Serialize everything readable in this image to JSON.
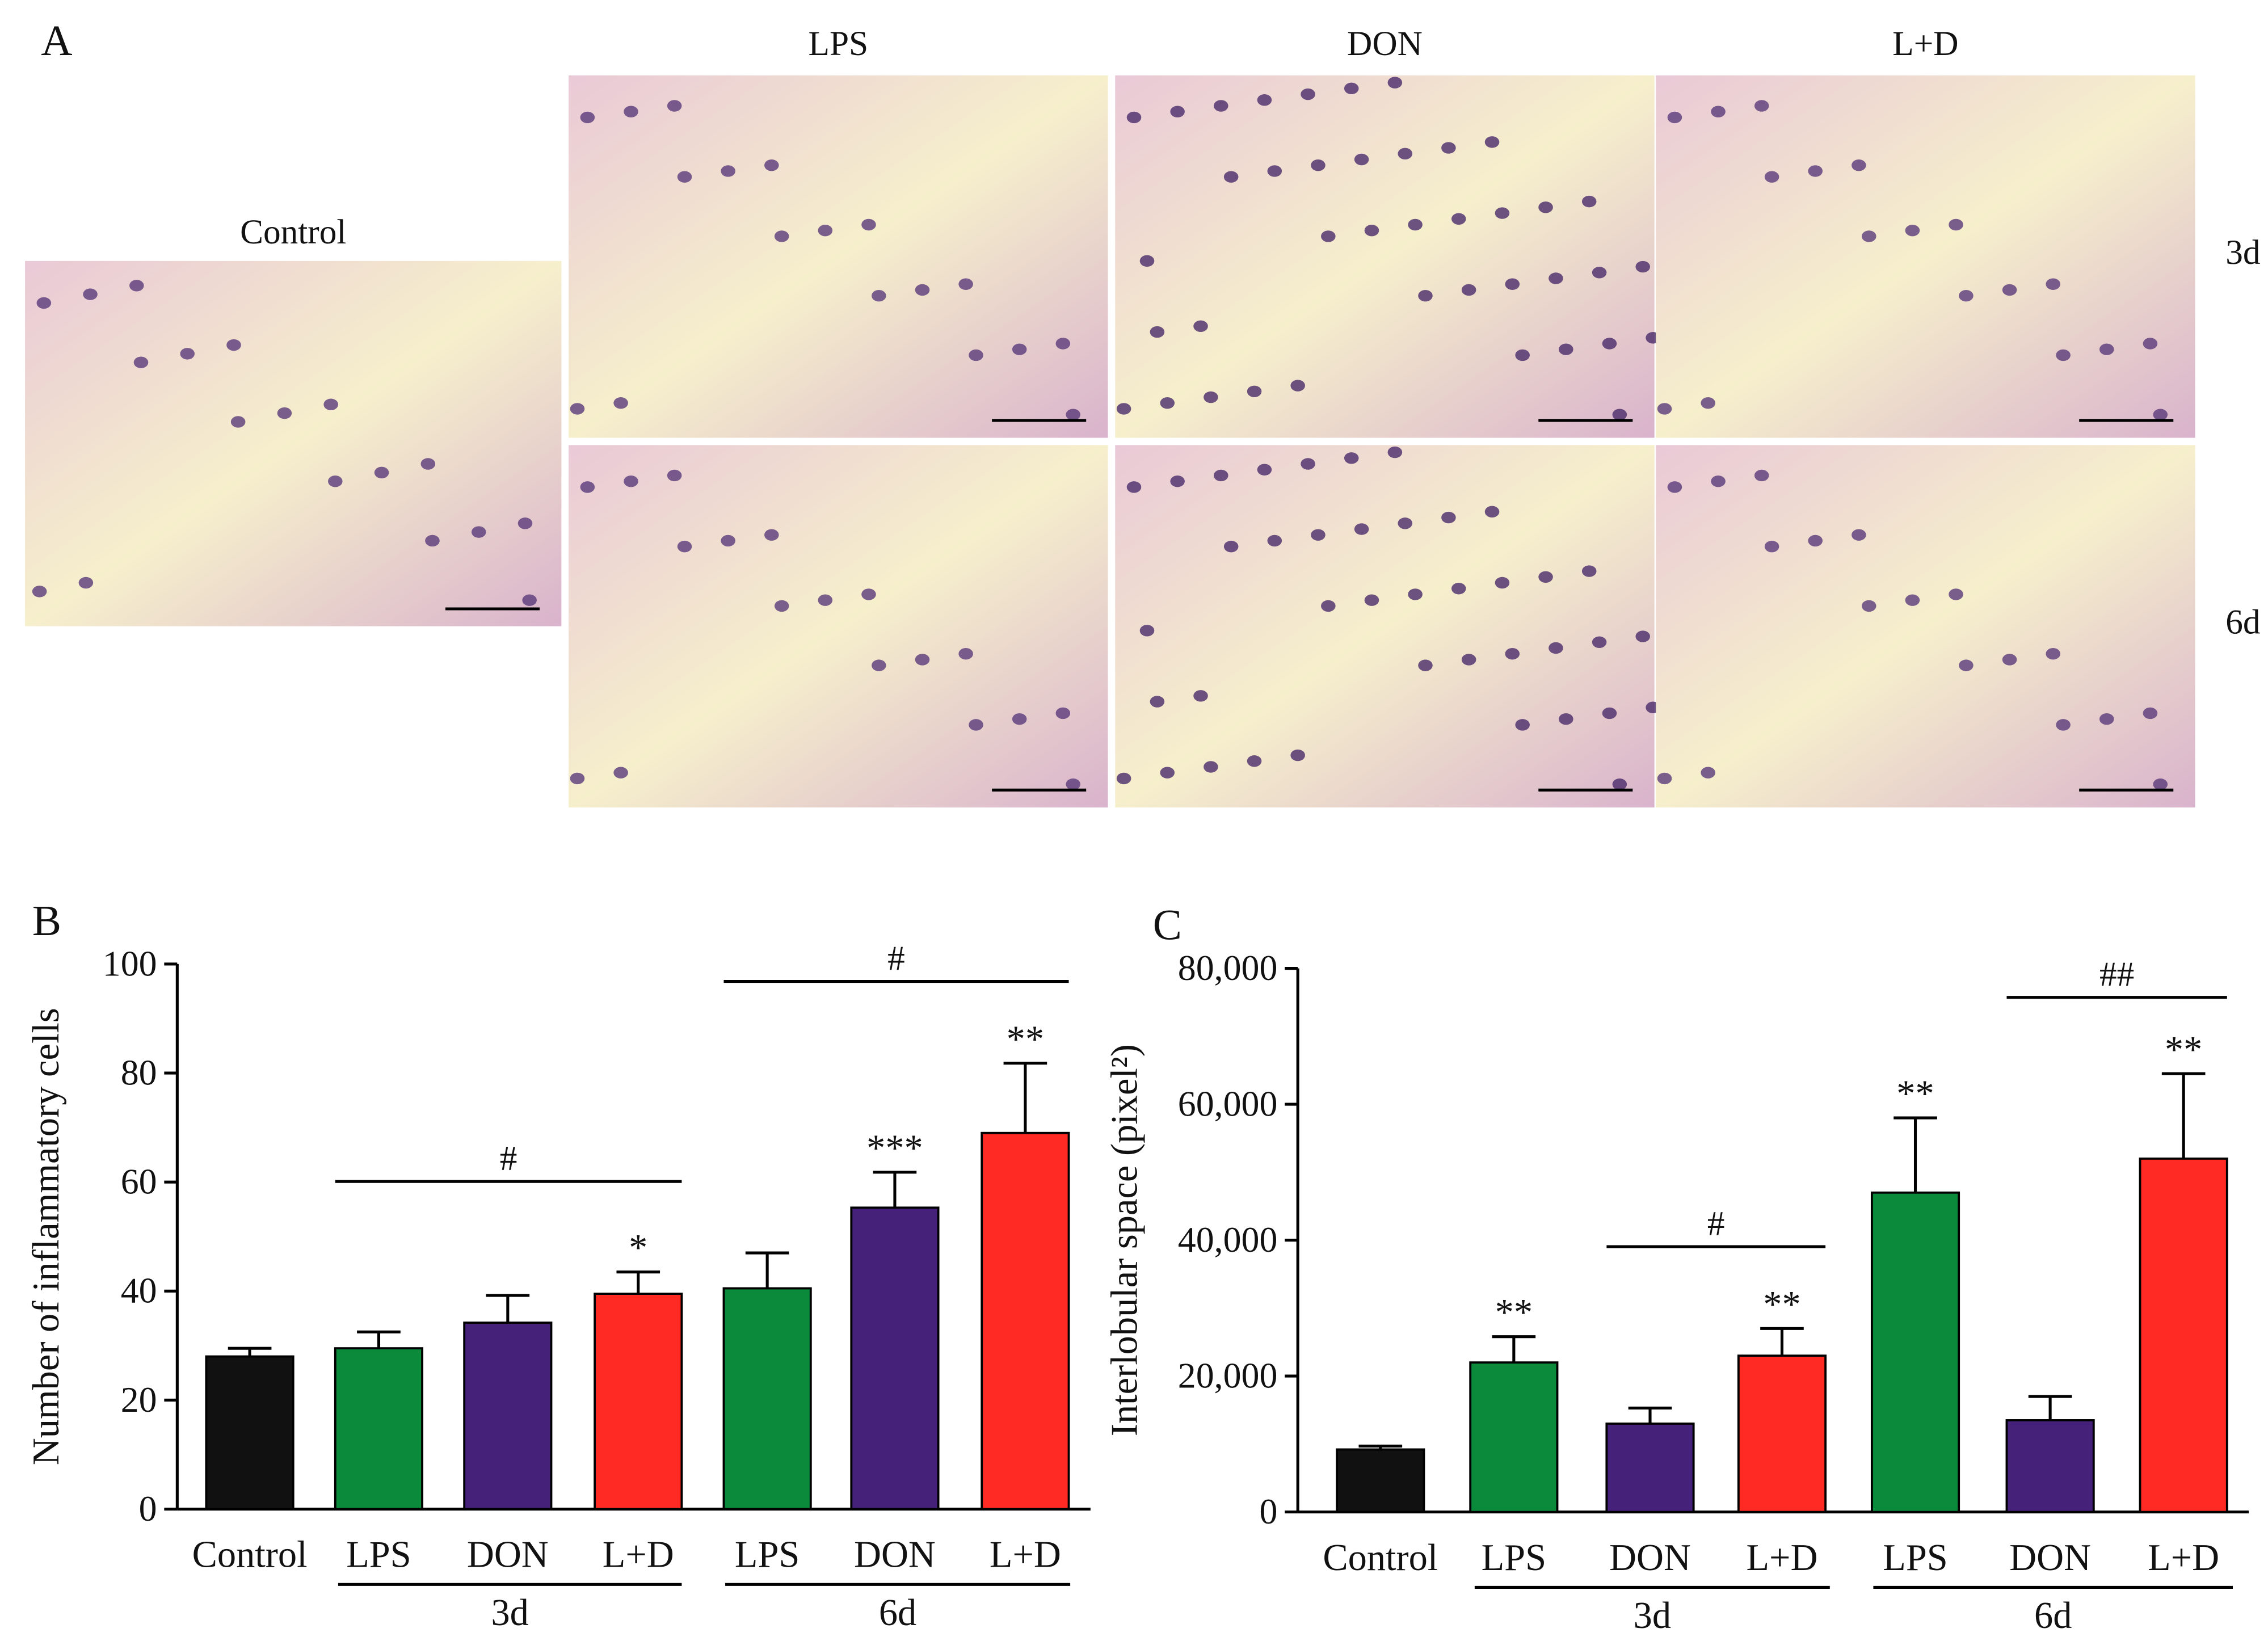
{
  "figure_a": {
    "panel_label": "A",
    "control_label": "Control",
    "columns": [
      "LPS",
      "DON",
      "L+D"
    ],
    "rows": [
      "3d",
      "6d"
    ]
  },
  "chart_data": [
    {
      "type": "bar",
      "panel_label": "B",
      "ylabel": "Number of inflammatory cells",
      "categories": [
        "Control",
        "LPS",
        "DON",
        "L+D",
        "LPS",
        "DON",
        "L+D"
      ],
      "values": [
        28,
        29.5,
        34.2,
        39.5,
        40.5,
        55.3,
        69
      ],
      "errors": [
        1.5,
        3,
        5,
        4,
        6.5,
        6.5,
        12.8
      ],
      "colors": [
        "#111111",
        "#0b8a3b",
        "#45217a",
        "#ff2a24",
        "#0b8a3b",
        "#45217a",
        "#ff2a24"
      ],
      "annotations": [
        null,
        null,
        null,
        "*",
        null,
        "***",
        "**"
      ],
      "brackets": [
        "#",
        "#"
      ],
      "groups": [
        "3d",
        "6d"
      ],
      "ylim": [
        0,
        100
      ],
      "yticks": [
        0,
        20,
        40,
        60,
        80,
        100
      ]
    },
    {
      "type": "bar",
      "panel_label": "C",
      "ylabel": "Interlobular space (pixel²)",
      "categories": [
        "Control",
        "LPS",
        "DON",
        "L+D",
        "LPS",
        "DON",
        "L+D"
      ],
      "values": [
        9200,
        22000,
        13000,
        23000,
        47000,
        13500,
        52000
      ],
      "errors": [
        500,
        3800,
        2300,
        4000,
        11000,
        3500,
        12500
      ],
      "colors": [
        "#111111",
        "#0b8a3b",
        "#45217a",
        "#ff2a24",
        "#0b8a3b",
        "#45217a",
        "#ff2a24"
      ],
      "annotations": [
        null,
        "**",
        null,
        "**",
        "**",
        null,
        "**"
      ],
      "brackets": [
        "#",
        "##"
      ],
      "groups": [
        "3d",
        "6d"
      ],
      "ylim": [
        0,
        80000
      ],
      "yticks": [
        0,
        {
          "value": 20000,
          "label": "20,000"
        },
        {
          "value": 40000,
          "label": "40,000"
        },
        {
          "value": 60000,
          "label": "60,000"
        },
        {
          "value": 80000,
          "label": "80,000"
        }
      ]
    }
  ]
}
